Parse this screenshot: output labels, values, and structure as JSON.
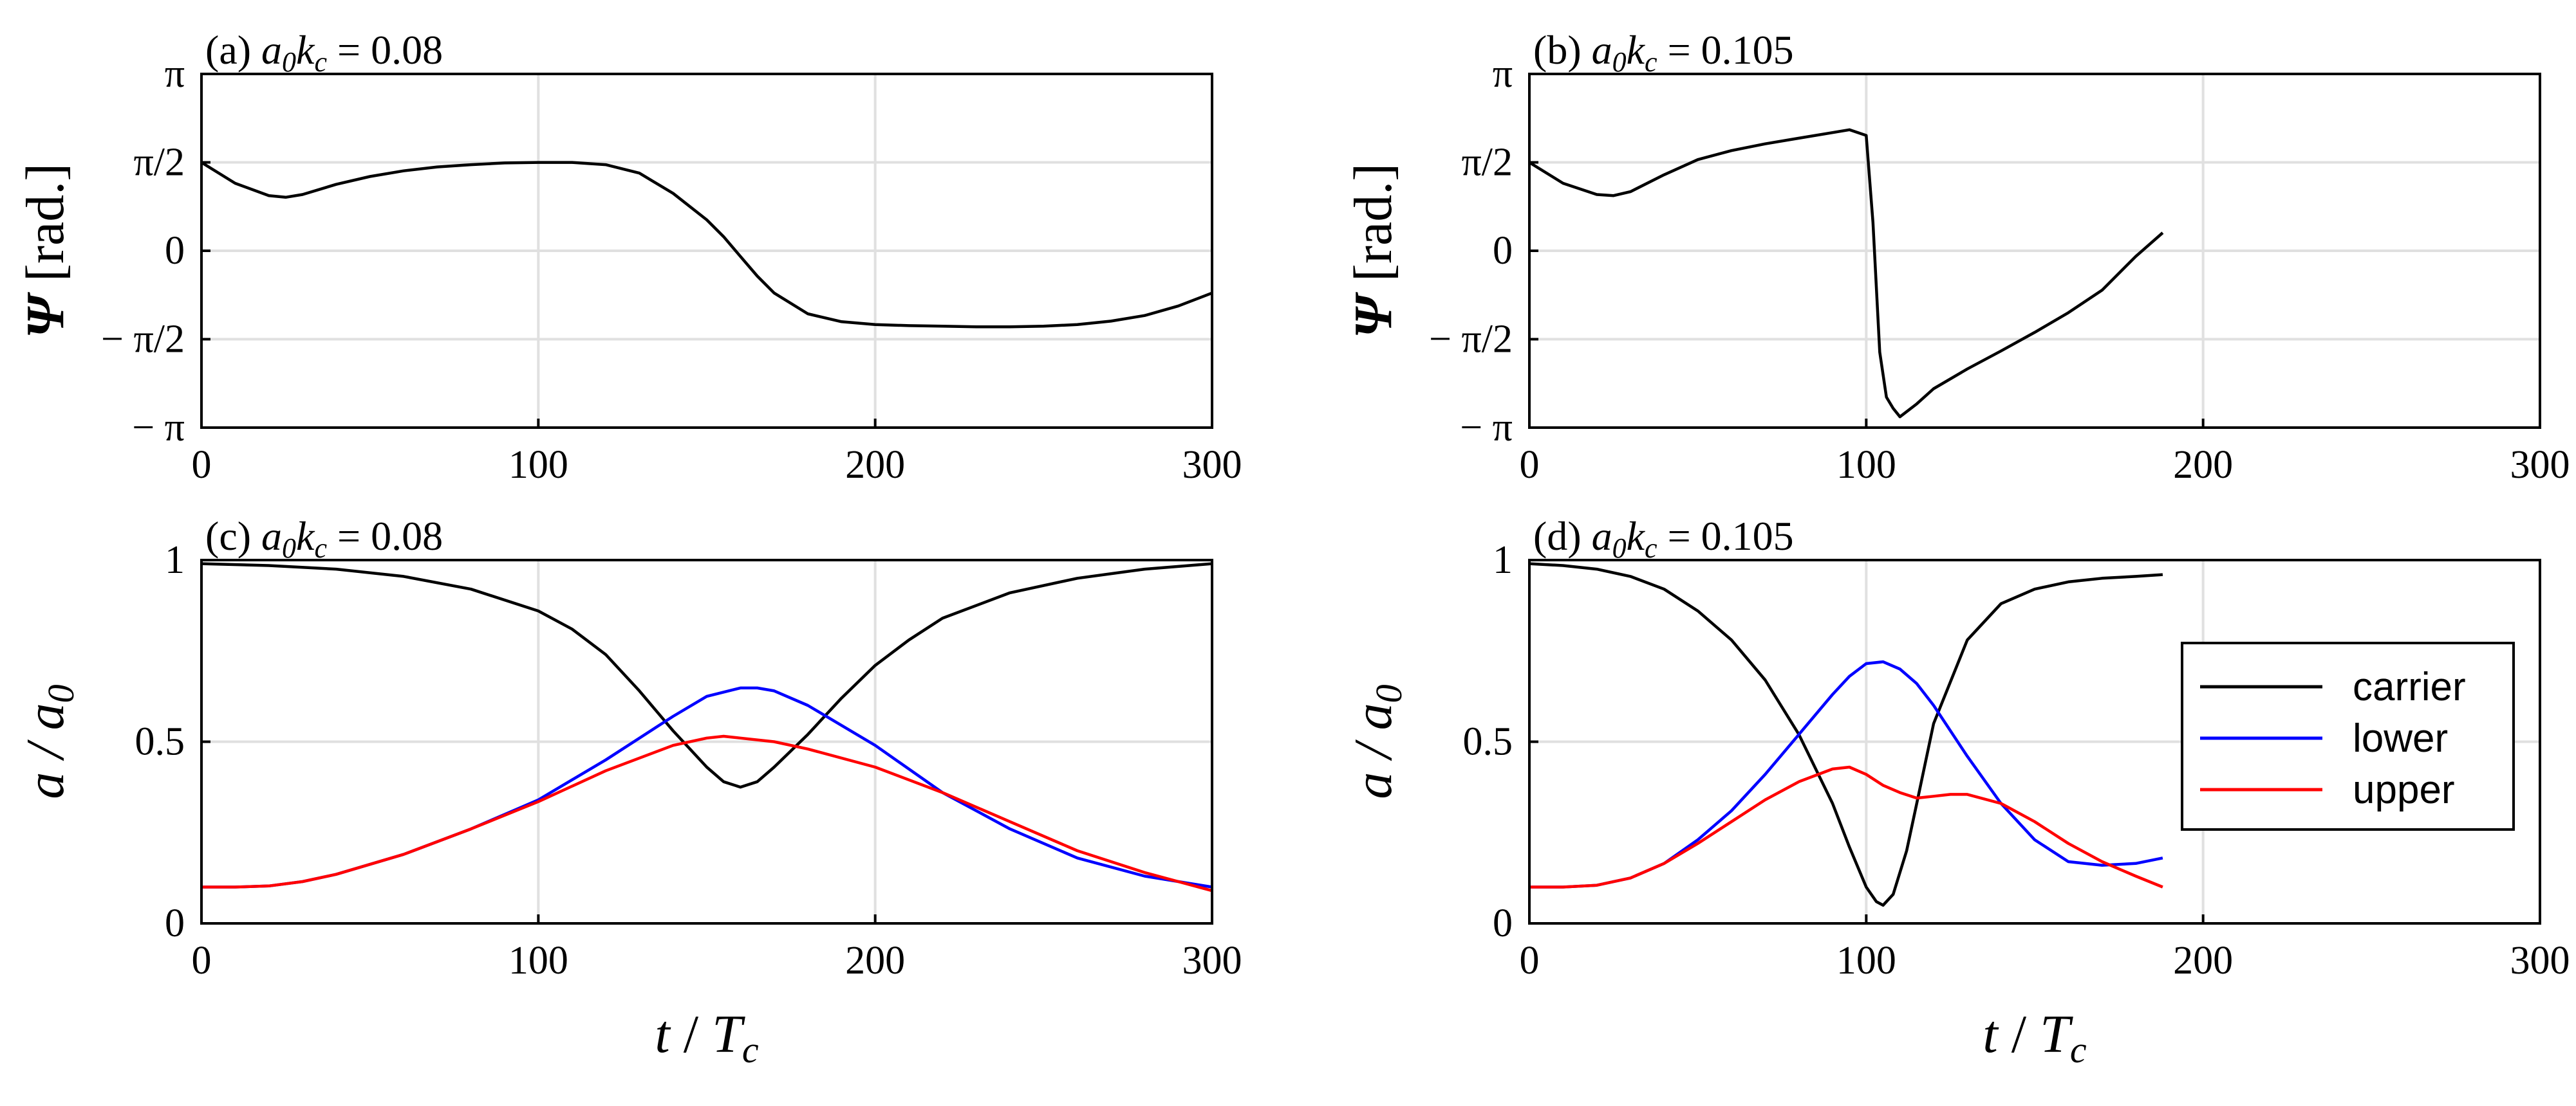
{
  "figure": {
    "x_label_main": "t",
    "x_label_sep": " / ",
    "x_label_T": "T",
    "x_label_sub": "c"
  },
  "legend": {
    "carrier": "carrier",
    "lower": "lower",
    "upper": "upper"
  },
  "colors": {
    "carrier": "#000000",
    "lower": "#0000ff",
    "upper": "#ff0000",
    "grid": "#e0e0e0"
  },
  "chart_data": [
    {
      "id": "a",
      "type": "line",
      "title_prefix": "(a) ",
      "title_param": "a",
      "title_param_sub1": "0",
      "title_param_k": "k",
      "title_param_sub2": "c",
      "title_value": " = 0.08",
      "ylabel_symbol": "Ψ",
      "ylabel_unit": " [rad.]",
      "xlim": [
        0,
        300
      ],
      "ylim": [
        -3.14159,
        3.14159
      ],
      "xticks": [
        0,
        100,
        200,
        300
      ],
      "xtick_labels": [
        "0",
        "100",
        "200",
        "300"
      ],
      "yticks": [
        -3.14159,
        -1.5708,
        0,
        1.5708,
        3.14159
      ],
      "ytick_labels": [
        "− π",
        "− π/2",
        "0",
        "π/2",
        "π"
      ],
      "series": [
        {
          "name": "Ψ",
          "x": [
            0,
            10,
            20,
            25,
            30,
            40,
            50,
            60,
            70,
            80,
            90,
            100,
            110,
            120,
            130,
            140,
            150,
            155,
            160,
            165,
            170,
            180,
            190,
            200,
            210,
            220,
            230,
            240,
            250,
            260,
            270,
            280,
            290,
            300
          ],
          "y": [
            1.57,
            1.2,
            0.98,
            0.95,
            1.0,
            1.18,
            1.32,
            1.42,
            1.49,
            1.53,
            1.56,
            1.57,
            1.57,
            1.53,
            1.38,
            1.02,
            0.55,
            0.25,
            -0.1,
            -0.45,
            -0.75,
            -1.12,
            -1.26,
            -1.31,
            -1.33,
            -1.34,
            -1.35,
            -1.35,
            -1.34,
            -1.31,
            -1.25,
            -1.15,
            -0.98,
            -0.75
          ]
        }
      ]
    },
    {
      "id": "b",
      "type": "line",
      "title_prefix": "(b) ",
      "title_param": "a",
      "title_param_sub1": "0",
      "title_param_k": "k",
      "title_param_sub2": "c",
      "title_value": " = 0.105",
      "ylabel_symbol": "Ψ",
      "ylabel_unit": " [rad.]",
      "xlim": [
        0,
        300
      ],
      "ylim": [
        -3.14159,
        3.14159
      ],
      "xticks": [
        0,
        100,
        200,
        300
      ],
      "xtick_labels": [
        "0",
        "100",
        "200",
        "300"
      ],
      "yticks": [
        -3.14159,
        -1.5708,
        0,
        1.5708,
        3.14159
      ],
      "ytick_labels": [
        "− π",
        "− π/2",
        "0",
        "π/2",
        "π"
      ],
      "series": [
        {
          "name": "Ψ",
          "x": [
            0,
            10,
            20,
            25,
            30,
            40,
            50,
            60,
            70,
            80,
            90,
            95,
            100,
            102,
            104,
            106,
            108,
            110,
            115,
            120,
            130,
            140,
            150,
            160,
            170,
            180,
            188
          ],
          "y": [
            1.57,
            1.2,
            1.0,
            0.98,
            1.05,
            1.35,
            1.62,
            1.78,
            1.9,
            2.0,
            2.1,
            2.15,
            2.05,
            0.5,
            -1.8,
            -2.6,
            -2.8,
            -2.95,
            -2.72,
            -2.45,
            -2.1,
            -1.78,
            -1.45,
            -1.1,
            -0.7,
            -0.1,
            0.32
          ]
        }
      ]
    },
    {
      "id": "c",
      "type": "line",
      "title_prefix": "(c) ",
      "title_param": "a",
      "title_param_sub1": "0",
      "title_param_k": "k",
      "title_param_sub2": "c",
      "title_value": " = 0.08",
      "ylabel_symbol": "a / a",
      "ylabel_sub": "0",
      "xlim": [
        0,
        300
      ],
      "ylim": [
        0,
        1
      ],
      "xticks": [
        0,
        100,
        200,
        300
      ],
      "xtick_labels": [
        "0",
        "100",
        "200",
        "300"
      ],
      "yticks": [
        0,
        0.5,
        1
      ],
      "ytick_labels": [
        "0",
        "0.5",
        "1"
      ],
      "series": [
        {
          "name": "carrier",
          "x": [
            0,
            20,
            40,
            60,
            80,
            100,
            110,
            120,
            130,
            140,
            150,
            155,
            160,
            165,
            170,
            180,
            190,
            200,
            210,
            220,
            240,
            260,
            280,
            300
          ],
          "y": [
            0.99,
            0.985,
            0.975,
            0.955,
            0.92,
            0.86,
            0.81,
            0.74,
            0.64,
            0.53,
            0.43,
            0.39,
            0.375,
            0.39,
            0.43,
            0.52,
            0.62,
            0.71,
            0.78,
            0.84,
            0.91,
            0.95,
            0.975,
            0.99
          ]
        },
        {
          "name": "lower",
          "x": [
            0,
            10,
            20,
            30,
            40,
            60,
            80,
            100,
            120,
            140,
            150,
            160,
            165,
            170,
            180,
            200,
            220,
            240,
            260,
            280,
            300
          ],
          "y": [
            0.1,
            0.1,
            0.103,
            0.115,
            0.135,
            0.19,
            0.26,
            0.34,
            0.45,
            0.57,
            0.625,
            0.648,
            0.648,
            0.64,
            0.6,
            0.49,
            0.36,
            0.26,
            0.18,
            0.13,
            0.1
          ]
        },
        {
          "name": "upper",
          "x": [
            0,
            10,
            20,
            30,
            40,
            60,
            80,
            100,
            120,
            140,
            150,
            155,
            160,
            170,
            180,
            200,
            220,
            240,
            260,
            280,
            300
          ],
          "y": [
            0.1,
            0.1,
            0.103,
            0.115,
            0.135,
            0.19,
            0.26,
            0.335,
            0.42,
            0.49,
            0.51,
            0.515,
            0.51,
            0.5,
            0.48,
            0.43,
            0.36,
            0.28,
            0.2,
            0.14,
            0.09
          ]
        }
      ]
    },
    {
      "id": "d",
      "type": "line",
      "title_prefix": "(d) ",
      "title_param": "a",
      "title_param_sub1": "0",
      "title_param_k": "k",
      "title_param_sub2": "c",
      "title_value": " = 0.105",
      "ylabel_symbol": "a / a",
      "ylabel_sub": "0",
      "xlim": [
        0,
        300
      ],
      "ylim": [
        0,
        1
      ],
      "xticks": [
        0,
        100,
        200,
        300
      ],
      "xtick_labels": [
        "0",
        "100",
        "200",
        "300"
      ],
      "yticks": [
        0,
        0.5,
        1
      ],
      "ytick_labels": [
        "0",
        "0.5",
        "1"
      ],
      "legend_placement": "right-center",
      "series": [
        {
          "name": "carrier",
          "x": [
            0,
            10,
            20,
            30,
            40,
            50,
            60,
            70,
            80,
            90,
            95,
            100,
            103,
            105,
            108,
            112,
            115,
            120,
            130,
            140,
            150,
            160,
            170,
            180,
            188
          ],
          "y": [
            0.99,
            0.985,
            0.975,
            0.955,
            0.92,
            0.86,
            0.78,
            0.67,
            0.52,
            0.33,
            0.21,
            0.1,
            0.06,
            0.05,
            0.08,
            0.2,
            0.33,
            0.55,
            0.78,
            0.88,
            0.92,
            0.94,
            0.95,
            0.955,
            0.96
          ]
        },
        {
          "name": "lower",
          "x": [
            0,
            10,
            20,
            30,
            40,
            50,
            60,
            70,
            80,
            90,
            95,
            100,
            105,
            110,
            115,
            120,
            130,
            140,
            150,
            160,
            170,
            180,
            188
          ],
          "y": [
            0.1,
            0.1,
            0.105,
            0.125,
            0.165,
            0.23,
            0.31,
            0.41,
            0.52,
            0.63,
            0.68,
            0.715,
            0.72,
            0.7,
            0.66,
            0.6,
            0.46,
            0.33,
            0.23,
            0.17,
            0.16,
            0.165,
            0.18
          ]
        },
        {
          "name": "upper",
          "x": [
            0,
            10,
            20,
            30,
            40,
            50,
            60,
            70,
            80,
            90,
            95,
            100,
            105,
            110,
            115,
            120,
            125,
            130,
            140,
            150,
            160,
            170,
            180,
            188
          ],
          "y": [
            0.1,
            0.1,
            0.105,
            0.125,
            0.165,
            0.22,
            0.28,
            0.34,
            0.39,
            0.425,
            0.43,
            0.41,
            0.38,
            0.36,
            0.345,
            0.35,
            0.355,
            0.355,
            0.33,
            0.28,
            0.22,
            0.17,
            0.13,
            0.1
          ]
        }
      ]
    }
  ]
}
